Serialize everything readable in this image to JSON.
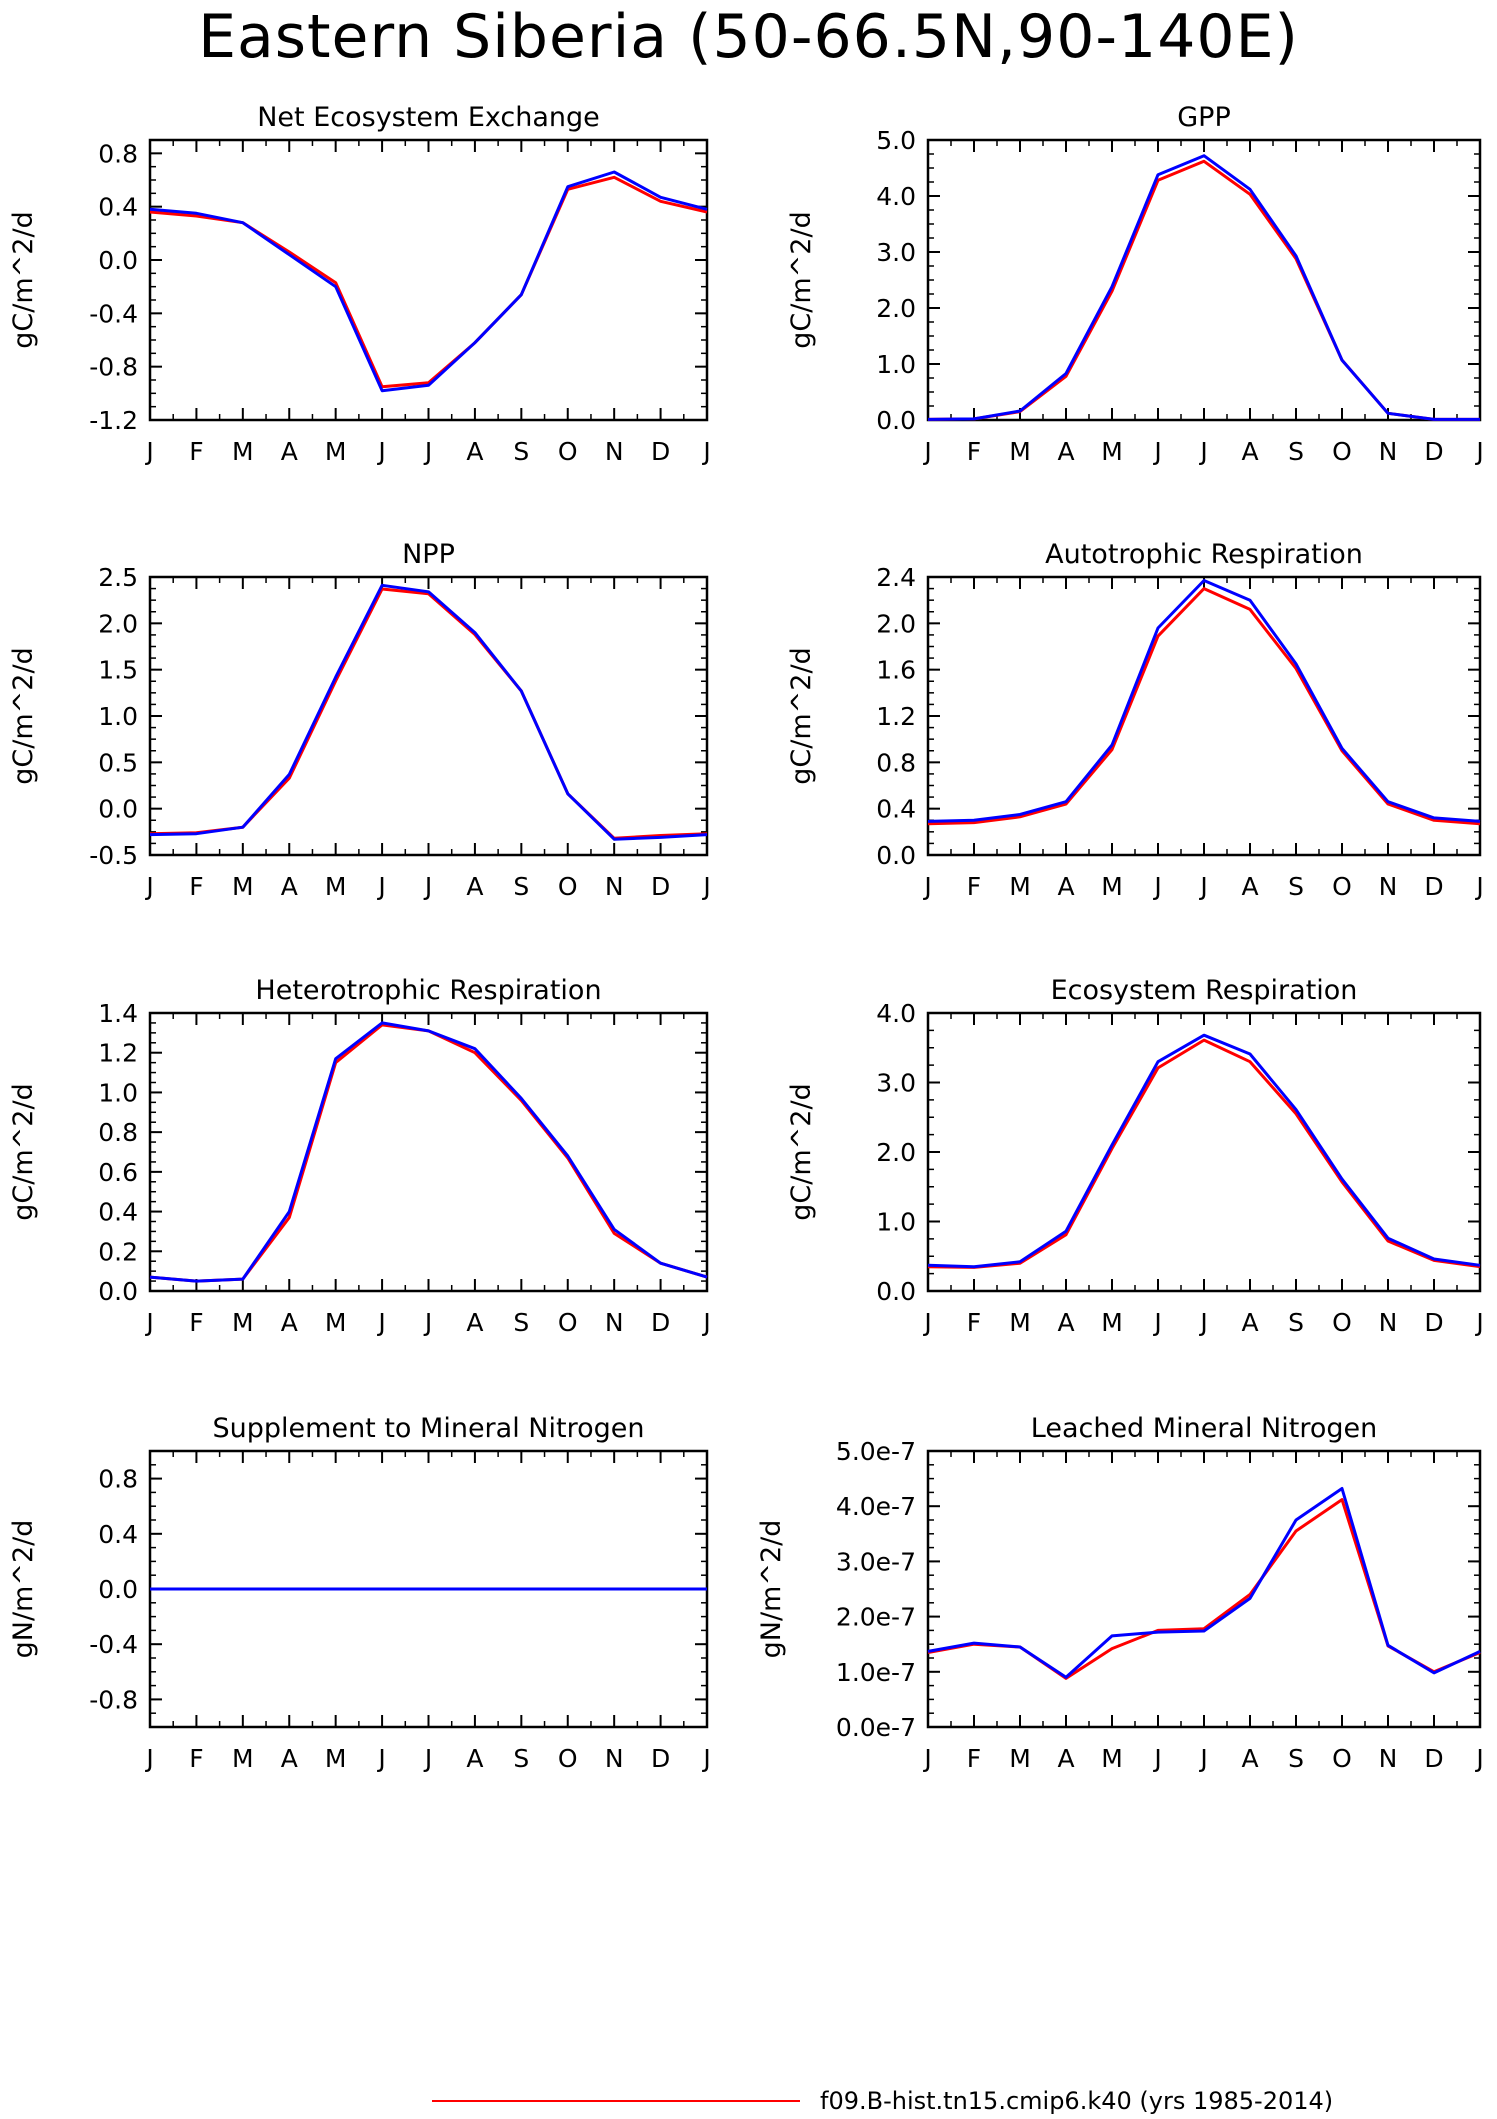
{
  "page": {
    "title": "Eastern Siberia (50-66.5N,90-140E)"
  },
  "colors": {
    "red_series": "#ff0000",
    "blue_series": "#0000ff",
    "axis": "#000000"
  },
  "legend": {
    "entries": [
      {
        "label": "f09.B-hist.tn15.cmip6.k40 (yrs 1985-2014)",
        "color": "#ff0000"
      }
    ]
  },
  "chart_data": [
    {
      "type": "line",
      "title": "Net Ecosystem Exchange",
      "ylabel": "gC/m^2/d",
      "categories": [
        "J",
        "F",
        "M",
        "A",
        "M",
        "J",
        "J",
        "A",
        "S",
        "O",
        "N",
        "D",
        "J"
      ],
      "ylim": [
        -1.2,
        0.9
      ],
      "yticks": [
        -1.2,
        -0.8,
        -0.4,
        0.0,
        0.4,
        0.8
      ],
      "ytick_labels": [
        "-1.2",
        "-0.8",
        "-0.4",
        "0.0",
        "0.4",
        "0.8"
      ],
      "series": [
        {
          "color": "#ff0000",
          "values": [
            0.36,
            0.33,
            0.28,
            0.06,
            -0.17,
            -0.95,
            -0.92,
            -0.62,
            -0.26,
            0.53,
            0.62,
            0.44,
            0.36
          ]
        },
        {
          "color": "#0000ff",
          "values": [
            0.38,
            0.35,
            0.28,
            0.04,
            -0.2,
            -0.98,
            -0.94,
            -0.62,
            -0.26,
            0.55,
            0.66,
            0.47,
            0.38
          ]
        }
      ]
    },
    {
      "type": "line",
      "title": "GPP",
      "ylabel": "gC/m^2/d",
      "categories": [
        "J",
        "F",
        "M",
        "A",
        "M",
        "J",
        "J",
        "A",
        "S",
        "O",
        "N",
        "D",
        "J"
      ],
      "ylim": [
        0.0,
        5.0
      ],
      "yticks": [
        0.0,
        1.0,
        2.0,
        3.0,
        4.0,
        5.0
      ],
      "ytick_labels": [
        "0.0",
        "1.0",
        "2.0",
        "3.0",
        "4.0",
        "5.0"
      ],
      "series": [
        {
          "color": "#ff0000",
          "values": [
            0.01,
            0.02,
            0.15,
            0.78,
            2.3,
            4.28,
            4.62,
            4.03,
            2.88,
            1.07,
            0.12,
            0.01,
            0.01
          ]
        },
        {
          "color": "#0000ff",
          "values": [
            0.01,
            0.02,
            0.16,
            0.83,
            2.38,
            4.38,
            4.72,
            4.12,
            2.93,
            1.07,
            0.12,
            0.01,
            0.01
          ]
        }
      ]
    },
    {
      "type": "line",
      "title": "NPP",
      "ylabel": "gC/m^2/d",
      "categories": [
        "J",
        "F",
        "M",
        "A",
        "M",
        "J",
        "J",
        "A",
        "S",
        "O",
        "N",
        "D",
        "J"
      ],
      "ylim": [
        -0.5,
        2.5
      ],
      "yticks": [
        -0.5,
        0.0,
        0.5,
        1.0,
        1.5,
        2.0,
        2.5
      ],
      "ytick_labels": [
        "-0.5",
        "0.0",
        "0.5",
        "1.0",
        "1.5",
        "2.0",
        "2.5"
      ],
      "series": [
        {
          "color": "#ff0000",
          "values": [
            -0.27,
            -0.26,
            -0.2,
            0.33,
            1.38,
            2.37,
            2.32,
            1.88,
            1.27,
            0.16,
            -0.32,
            -0.29,
            -0.27
          ]
        },
        {
          "color": "#0000ff",
          "values": [
            -0.28,
            -0.27,
            -0.2,
            0.37,
            1.42,
            2.41,
            2.34,
            1.9,
            1.27,
            0.16,
            -0.33,
            -0.31,
            -0.28
          ]
        }
      ]
    },
    {
      "type": "line",
      "title": "Autotrophic Respiration",
      "ylabel": "gC/m^2/d",
      "categories": [
        "J",
        "F",
        "M",
        "A",
        "M",
        "J",
        "J",
        "A",
        "S",
        "O",
        "N",
        "D",
        "J"
      ],
      "ylim": [
        0.0,
        2.4
      ],
      "yticks": [
        0.0,
        0.4,
        0.8,
        1.2,
        1.6,
        2.0,
        2.4
      ],
      "ytick_labels": [
        "0.0",
        "0.4",
        "0.8",
        "1.2",
        "1.6",
        "2.0",
        "2.4"
      ],
      "series": [
        {
          "color": "#ff0000",
          "values": [
            0.27,
            0.28,
            0.33,
            0.44,
            0.91,
            1.89,
            2.3,
            2.12,
            1.61,
            0.9,
            0.44,
            0.3,
            0.27
          ]
        },
        {
          "color": "#0000ff",
          "values": [
            0.29,
            0.3,
            0.35,
            0.46,
            0.95,
            1.96,
            2.37,
            2.2,
            1.65,
            0.92,
            0.46,
            0.32,
            0.29
          ]
        }
      ]
    },
    {
      "type": "line",
      "title": "Heterotrophic Respiration",
      "ylabel": "gC/m^2/d",
      "categories": [
        "J",
        "F",
        "M",
        "A",
        "M",
        "J",
        "J",
        "A",
        "S",
        "O",
        "N",
        "D",
        "J"
      ],
      "ylim": [
        0.0,
        1.4
      ],
      "yticks": [
        0.0,
        0.2,
        0.4,
        0.6,
        0.8,
        1.0,
        1.2,
        1.4
      ],
      "ytick_labels": [
        "0.0",
        "0.2",
        "0.4",
        "0.6",
        "0.8",
        "1.0",
        "1.2",
        "1.4"
      ],
      "series": [
        {
          "color": "#ff0000",
          "values": [
            0.07,
            0.05,
            0.06,
            0.37,
            1.15,
            1.34,
            1.31,
            1.2,
            0.96,
            0.67,
            0.29,
            0.14,
            0.07
          ]
        },
        {
          "color": "#0000ff",
          "values": [
            0.07,
            0.05,
            0.06,
            0.4,
            1.17,
            1.35,
            1.31,
            1.22,
            0.97,
            0.68,
            0.31,
            0.14,
            0.07
          ]
        }
      ]
    },
    {
      "type": "line",
      "title": "Ecosystem Respiration",
      "ylabel": "gC/m^2/d",
      "categories": [
        "J",
        "F",
        "M",
        "A",
        "M",
        "J",
        "J",
        "A",
        "S",
        "O",
        "N",
        "D",
        "J"
      ],
      "ylim": [
        0.0,
        4.0
      ],
      "yticks": [
        0.0,
        1.0,
        2.0,
        3.0,
        4.0
      ],
      "ytick_labels": [
        "0.0",
        "1.0",
        "2.0",
        "3.0",
        "4.0"
      ],
      "series": [
        {
          "color": "#ff0000",
          "values": [
            0.35,
            0.34,
            0.4,
            0.81,
            2.05,
            3.21,
            3.61,
            3.3,
            2.55,
            1.57,
            0.72,
            0.44,
            0.35
          ]
        },
        {
          "color": "#0000ff",
          "values": [
            0.37,
            0.35,
            0.42,
            0.86,
            2.1,
            3.3,
            3.68,
            3.41,
            2.61,
            1.61,
            0.76,
            0.46,
            0.37
          ]
        }
      ]
    },
    {
      "type": "line",
      "title": "Supplement to Mineral Nitrogen",
      "ylabel": "gN/m^2/d",
      "categories": [
        "J",
        "F",
        "M",
        "A",
        "M",
        "J",
        "J",
        "A",
        "S",
        "O",
        "N",
        "D",
        "J"
      ],
      "ylim": [
        -1.0,
        1.0
      ],
      "yticks": [
        -0.8,
        -0.4,
        0.0,
        0.4,
        0.8
      ],
      "ytick_labels": [
        "-0.8",
        "-0.4",
        "0.0",
        "0.4",
        "0.8"
      ],
      "series": [
        {
          "color": "#ff0000",
          "values": [
            0,
            0,
            0,
            0,
            0,
            0,
            0,
            0,
            0,
            0,
            0,
            0,
            0
          ]
        },
        {
          "color": "#0000ff",
          "values": [
            0,
            0,
            0,
            0,
            0,
            0,
            0,
            0,
            0,
            0,
            0,
            0,
            0
          ]
        }
      ]
    },
    {
      "type": "line",
      "title": "Leached Mineral Nitrogen",
      "ylabel": "gN/m^2/d",
      "categories": [
        "J",
        "F",
        "M",
        "A",
        "M",
        "J",
        "J",
        "A",
        "S",
        "O",
        "N",
        "D",
        "J"
      ],
      "ylim": [
        0.0,
        5e-07
      ],
      "yticks": [
        0.0,
        1e-07,
        2e-07,
        3e-07,
        4e-07,
        5e-07
      ],
      "ytick_labels": [
        "0.0e-7",
        "1.0e-7",
        "2.0e-7",
        "3.0e-7",
        "4.0e-7",
        "5.0e-7"
      ],
      "series": [
        {
          "color": "#ff0000",
          "values": [
            1.35e-07,
            1.5e-07,
            1.45e-07,
            8.8e-08,
            1.42e-07,
            1.75e-07,
            1.78e-07,
            2.4e-07,
            3.55e-07,
            4.12e-07,
            1.47e-07,
            1e-07,
            1.35e-07
          ]
        },
        {
          "color": "#0000ff",
          "values": [
            1.37e-07,
            1.52e-07,
            1.45e-07,
            9e-08,
            1.65e-07,
            1.72e-07,
            1.74e-07,
            2.33e-07,
            3.75e-07,
            4.32e-07,
            1.48e-07,
            9.8e-08,
            1.37e-07
          ]
        }
      ]
    }
  ]
}
